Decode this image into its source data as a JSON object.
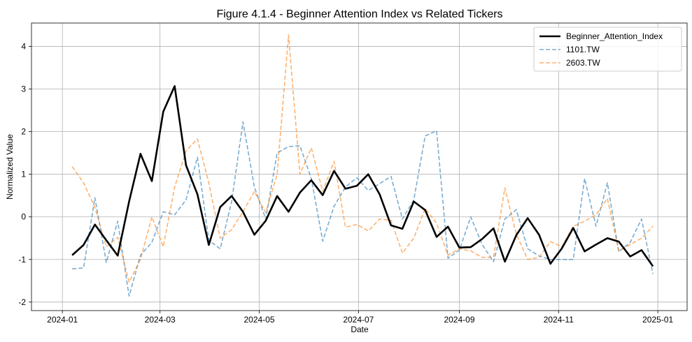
{
  "chart_data": {
    "type": "line",
    "title": "Figure 4.1.4 - Beginner Attention Index vs Related Tickers",
    "xlabel": "Date",
    "ylabel": "Normalized Value",
    "xlim": [
      "2023-12-13",
      "2025-01-19"
    ],
    "ylim": [
      -2.2,
      4.55
    ],
    "x_ticks": [
      "2024-01",
      "2024-03",
      "2024-05",
      "2024-07",
      "2024-09",
      "2024-11",
      "2025-01"
    ],
    "y_ticks": [
      -2,
      -1,
      0,
      1,
      2,
      3,
      4
    ],
    "grid": true,
    "legend_position": "top-right",
    "x": [
      "2024-01-07",
      "2024-01-14",
      "2024-01-21",
      "2024-01-28",
      "2024-02-04",
      "2024-02-11",
      "2024-02-18",
      "2024-02-25",
      "2024-03-03",
      "2024-03-10",
      "2024-03-17",
      "2024-03-24",
      "2024-03-31",
      "2024-04-07",
      "2024-04-14",
      "2024-04-21",
      "2024-04-28",
      "2024-05-05",
      "2024-05-12",
      "2024-05-19",
      "2024-05-26",
      "2024-06-02",
      "2024-06-09",
      "2024-06-16",
      "2024-06-23",
      "2024-06-30",
      "2024-07-07",
      "2024-07-14",
      "2024-07-21",
      "2024-07-28",
      "2024-08-04",
      "2024-08-11",
      "2024-08-18",
      "2024-08-25",
      "2024-09-01",
      "2024-09-08",
      "2024-09-15",
      "2024-09-22",
      "2024-09-29",
      "2024-10-06",
      "2024-10-13",
      "2024-10-20",
      "2024-10-27",
      "2024-11-03",
      "2024-11-10",
      "2024-11-17",
      "2024-11-24",
      "2024-12-01",
      "2024-12-08",
      "2024-12-15",
      "2024-12-22",
      "2024-12-29"
    ],
    "series": [
      {
        "name": "Beginner_Attention_Index",
        "color": "#000000",
        "style": "solid",
        "values": [
          -0.9,
          -0.66,
          -0.18,
          -0.55,
          -0.91,
          0.36,
          1.48,
          0.84,
          2.47,
          3.07,
          1.21,
          0.53,
          -0.66,
          0.23,
          0.49,
          0.12,
          -0.42,
          -0.09,
          0.49,
          0.12,
          0.57,
          0.86,
          0.51,
          1.08,
          0.66,
          0.73,
          1.0,
          0.53,
          -0.2,
          -0.28,
          0.36,
          0.16,
          -0.47,
          -0.23,
          -0.72,
          -0.71,
          -0.52,
          -0.27,
          -1.05,
          -0.43,
          -0.03,
          -0.42,
          -1.1,
          -0.74,
          -0.26,
          -0.81,
          -0.65,
          -0.5,
          -0.58,
          -0.93,
          -0.78,
          -1.16
        ]
      },
      {
        "name": "1101.TW",
        "color": "#1f77b4",
        "style": "dashed",
        "values": [
          -1.22,
          -1.2,
          0.45,
          -1.07,
          -0.1,
          -1.86,
          -0.9,
          -0.6,
          0.12,
          0.05,
          0.4,
          1.4,
          -0.55,
          -0.75,
          0.35,
          2.23,
          0.7,
          -0.05,
          1.5,
          1.65,
          1.67,
          0.9,
          -0.57,
          0.25,
          0.7,
          0.92,
          0.62,
          0.78,
          0.95,
          -0.05,
          0.4,
          1.9,
          2.02,
          -0.97,
          -0.78,
          0.0,
          -0.65,
          -1.05,
          -0.05,
          0.17,
          -0.75,
          -0.92,
          -1.0,
          -1.0,
          -1.0,
          0.9,
          -0.22,
          0.8,
          -0.82,
          -0.6,
          -0.05,
          -1.34
        ]
      },
      {
        "name": "2603.TW",
        "color": "#ff7f0e",
        "style": "dashed",
        "values": [
          1.18,
          0.8,
          0.22,
          -0.7,
          -0.48,
          -1.53,
          -1.0,
          0.0,
          -0.7,
          0.7,
          1.55,
          1.83,
          0.8,
          -0.5,
          -0.3,
          0.12,
          0.6,
          0.1,
          1.0,
          4.27,
          1.0,
          1.62,
          0.6,
          1.3,
          -0.24,
          -0.18,
          -0.33,
          -0.05,
          -0.08,
          -0.85,
          -0.5,
          0.2,
          -0.15,
          -0.9,
          -0.75,
          -0.8,
          -0.95,
          -0.95,
          0.68,
          -0.4,
          -1.0,
          -0.95,
          -0.58,
          -0.7,
          -0.22,
          -0.1,
          0.05,
          0.43,
          -0.8,
          -0.65,
          -0.5,
          -0.22
        ]
      }
    ]
  }
}
